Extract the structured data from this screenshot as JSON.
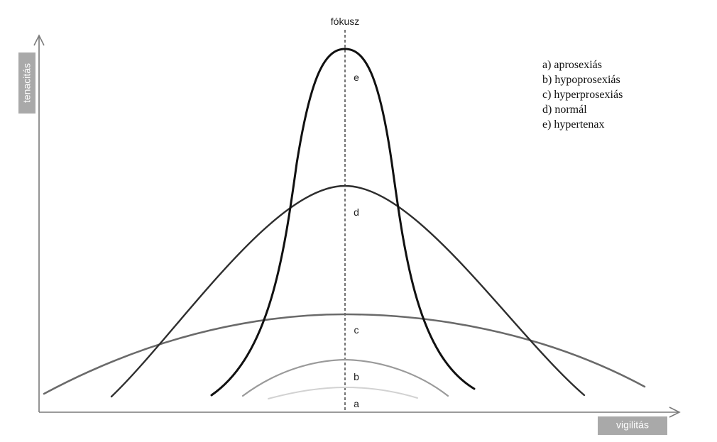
{
  "axes": {
    "y_label": "tenacitás",
    "x_label": "vigilitás",
    "focus_label": "fókusz"
  },
  "legend": [
    "a) aprosexiás",
    "b) hypoprosexiás",
    "c) hyperprosexiás",
    "d) normál",
    "e) hypertenax"
  ],
  "curves": [
    {
      "id": "a",
      "label": "a",
      "color": "#d2d2d2"
    },
    {
      "id": "b",
      "label": "b",
      "color": "#9a9a9a"
    },
    {
      "id": "c",
      "label": "c",
      "color": "#6a6a6a"
    },
    {
      "id": "d",
      "label": "d",
      "color": "#2e2e2e"
    },
    {
      "id": "e",
      "label": "e",
      "color": "#111111"
    }
  ],
  "colors": {
    "axis": "#7a7a7a",
    "axis_tag_background": "#a9a9a9",
    "axis_tag_text": "#ffffff"
  }
}
